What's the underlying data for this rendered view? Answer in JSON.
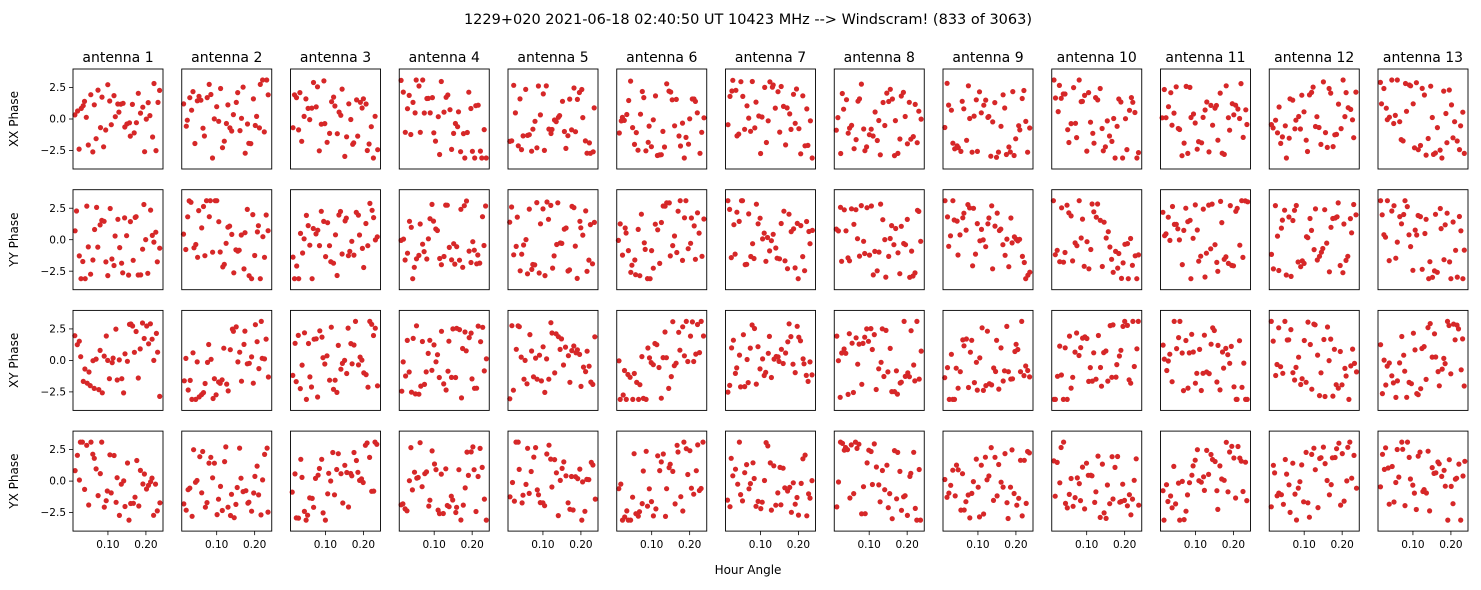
{
  "chart_data": {
    "type": "scatter",
    "title": "1229+020  2021-06-18 02:40:50 UT  10423 MHz  --> Windscram! (833 of 3063)",
    "xlabel": "Hour Angle",
    "columns": [
      "antenna 1",
      "antenna 2",
      "antenna 3",
      "antenna 4",
      "antenna 5",
      "antenna 6",
      "antenna 7",
      "antenna 8",
      "antenna 9",
      "antenna 10",
      "antenna 11",
      "antenna 12",
      "antenna 13"
    ],
    "rows": [
      "XX Phase",
      "YY Phase",
      "XY Phase",
      "YX Phase"
    ],
    "xlim": [
      0.008,
      0.245
    ],
    "ylim": [
      -3.97,
      3.97
    ],
    "xticks": [
      0.1,
      0.2
    ],
    "xtick_labels": [
      "0.10",
      "0.20"
    ],
    "yticks": [
      2.5,
      0.0,
      -2.5
    ],
    "ytick_labels": [
      "2.5",
      "0.0",
      "−2.5"
    ],
    "points_per_panel": 45,
    "x_range_of_points": [
      0.012,
      0.24
    ],
    "y_range_of_points": [
      -3.14,
      3.14
    ],
    "marker_color": "#d62728",
    "grid": false
  }
}
